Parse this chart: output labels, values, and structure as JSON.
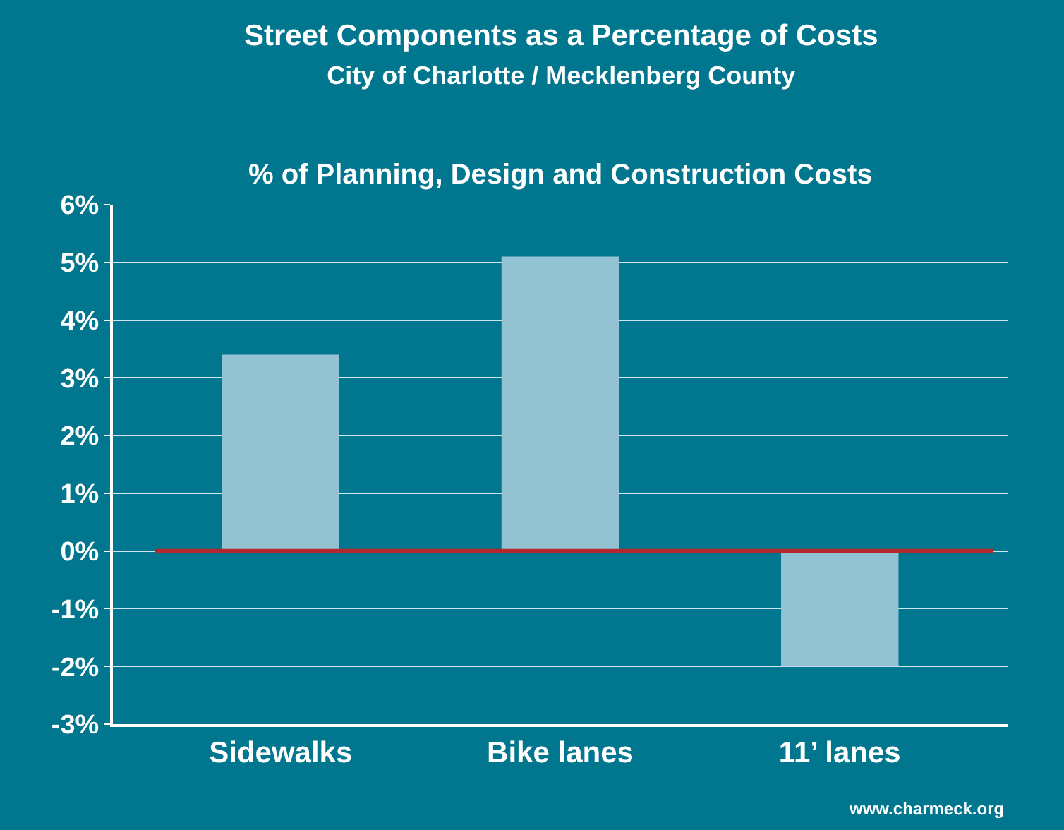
{
  "chart_data": {
    "type": "bar",
    "title": "Street Components as a Percentage of Costs",
    "subtitle": "City of Charlotte / Mecklenberg County",
    "ylabel": "% of Planning, Design and Construction Costs",
    "categories": [
      "Sidewalks",
      "Bike lanes",
      "11’ lanes"
    ],
    "values": [
      3.4,
      5.1,
      -2.0
    ],
    "color": "#93c3d2",
    "ylim": [
      -3,
      6
    ],
    "yticks": [
      {
        "value": -3,
        "label": "-3%"
      },
      {
        "value": -2,
        "label": "-2%"
      },
      {
        "value": -1,
        "label": "-1%"
      },
      {
        "value": 0,
        "label": "0%"
      },
      {
        "value": 1,
        "label": "1%"
      },
      {
        "value": 2,
        "label": "2%"
      },
      {
        "value": 3,
        "label": "3%"
      },
      {
        "value": 4,
        "label": "4%"
      },
      {
        "value": 5,
        "label": "5%"
      },
      {
        "value": 6,
        "label": "6%"
      }
    ],
    "grid": "y",
    "ref_lines": [
      {
        "axis": "y",
        "value": 0,
        "color": "#b3282d"
      }
    ],
    "annotations": [
      "www.charmeck.org"
    ]
  }
}
